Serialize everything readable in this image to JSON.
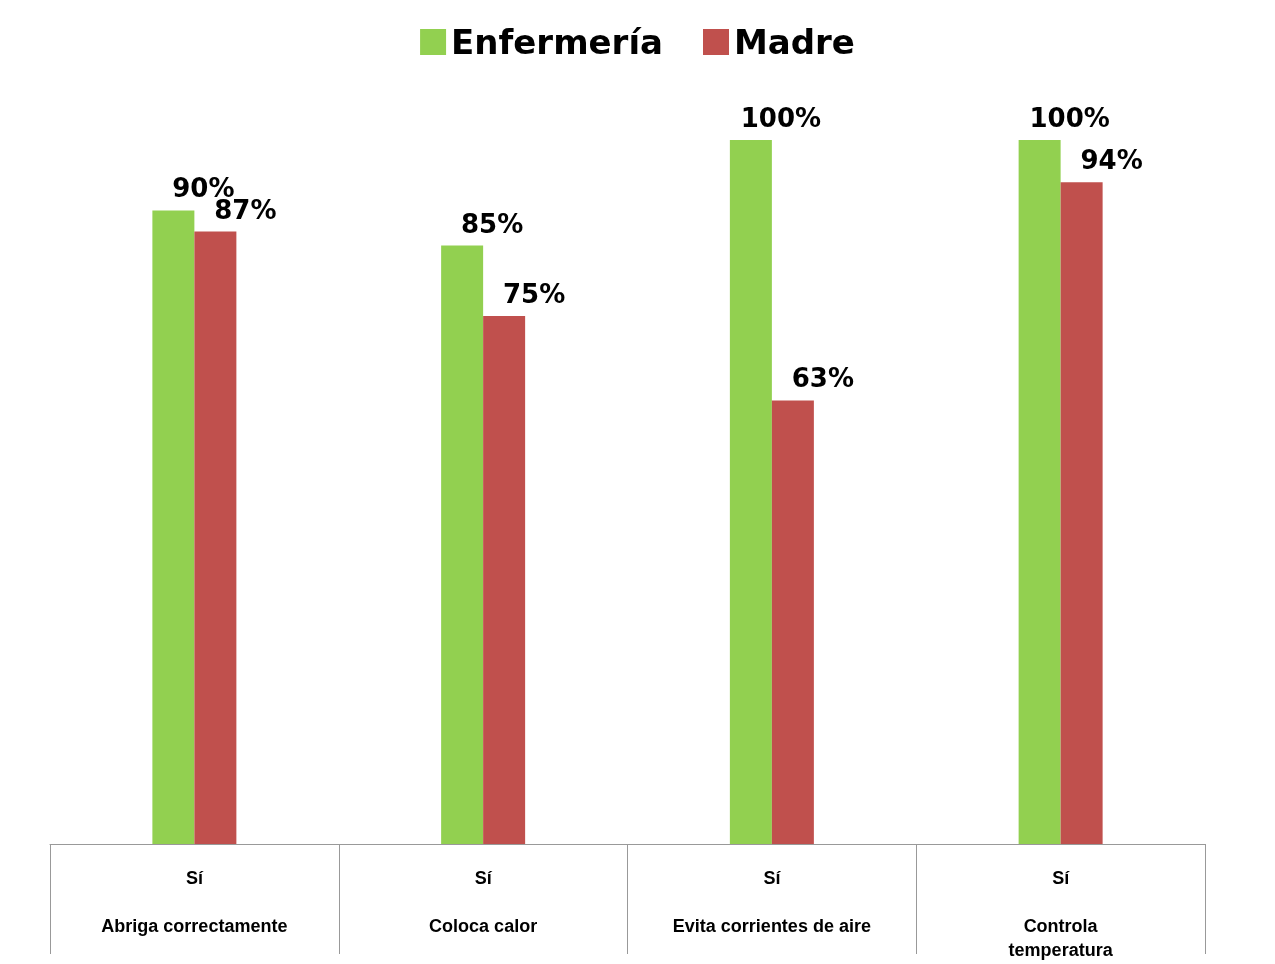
{
  "chart_data": {
    "type": "bar",
    "categories": [
      "Sí\n\nAbriga correctamente",
      "Sí\n\nColoca calor",
      "Sí\n\nEvita corrientes de aire",
      "Sí\n\nControla\ntemperatura"
    ],
    "series": [
      {
        "name": "Enfermería",
        "color": "#92d050",
        "values": [
          90,
          85,
          100,
          100
        ],
        "value_labels": [
          "90%",
          "85%",
          "100%",
          "100%"
        ]
      },
      {
        "name": "Madre",
        "color": "#c0504d",
        "values": [
          87,
          75,
          63,
          94
        ],
        "value_labels": [
          "87%",
          "75%",
          "63%",
          "94%"
        ]
      }
    ],
    "legend": "top"
  }
}
